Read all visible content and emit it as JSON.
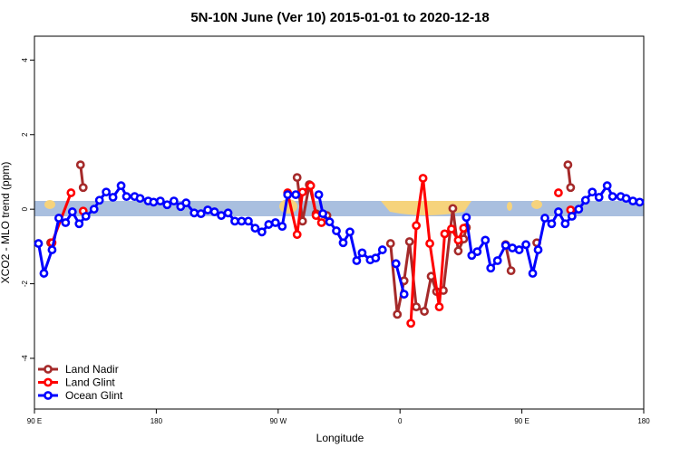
{
  "chart_data": {
    "type": "line",
    "title": "5N-10N June (Ver 10)   2015-01-01 to 2020-12-18",
    "x_label": "Longitude",
    "y_label": "XCO2 - MLO trend (ppm)",
    "xlim": [
      90,
      540
    ],
    "ylim": [
      -5.36,
      4.64
    ],
    "xticks": [
      {
        "value": 90,
        "label": "90 E"
      },
      180,
      {
        "value": 270,
        "label": "90 W"
      },
      {
        "value": 360,
        "label": "0"
      },
      {
        "value": 450,
        "label": "90 E"
      },
      {
        "value": 540,
        "label": "180"
      }
    ],
    "yticks": [
      -4,
      -2,
      0,
      2,
      4
    ],
    "grid": false,
    "legend": "bottom-left",
    "series": [
      {
        "name": "Land Nadir",
        "color": "#a52a2a",
        "x": [
          102,
          null,
          124,
          126,
          null,
          284,
          288,
          293,
          298,
          306,
          null,
          353,
          358,
          363,
          367,
          372,
          378,
          383,
          387,
          392,
          399,
          403,
          407,
          409,
          null,
          438,
          442,
          null,
          461,
          null,
          484,
          486
        ],
        "values": [
          -0.9,
          null,
          1.19,
          0.58,
          null,
          0.85,
          -0.32,
          0.66,
          -0.12,
          -0.17,
          null,
          -0.92,
          -2.82,
          -1.92,
          -0.87,
          -2.62,
          -2.74,
          -1.8,
          -2.21,
          -2.18,
          0.02,
          -1.12,
          -0.8,
          -0.49,
          null,
          -0.95,
          -1.65,
          null,
          -0.9,
          null,
          1.19,
          0.58
        ]
      },
      {
        "name": "Land Glint",
        "color": "#ff0000",
        "x": [
          103,
          117,
          null,
          126,
          null,
          277,
          284,
          288,
          294,
          298,
          302,
          null,
          368,
          372,
          377,
          382,
          389,
          393,
          398,
          403,
          407,
          null,
          477,
          null,
          486
        ],
        "values": [
          -0.9,
          0.44,
          null,
          -0.05,
          null,
          0.44,
          -0.68,
          0.46,
          0.63,
          -0.17,
          -0.36,
          null,
          -3.06,
          -0.44,
          0.83,
          -0.92,
          -2.62,
          -0.66,
          -0.53,
          -0.83,
          -0.51,
          null,
          0.44,
          null,
          -0.02
        ]
      },
      {
        "name": "Ocean Glint",
        "color": "#0000ff",
        "x": [
          93,
          97,
          103,
          108,
          113,
          118,
          123,
          128,
          134,
          138,
          143,
          148,
          154,
          158,
          164,
          168,
          174,
          178,
          183,
          188,
          193,
          198,
          202,
          208,
          213,
          218,
          223,
          228,
          233,
          238,
          243,
          248,
          253,
          258,
          263,
          268,
          273,
          277,
          283,
          null,
          300,
          303,
          308,
          313,
          318,
          323,
          328,
          332,
          338,
          342,
          347,
          null,
          357,
          363,
          null,
          409,
          413,
          417,
          423,
          427,
          432,
          438,
          443,
          448,
          453,
          458,
          462,
          467,
          472,
          477,
          482,
          487,
          492,
          497,
          502,
          507,
          513,
          517,
          523,
          527,
          532,
          537
        ],
        "values": [
          -0.92,
          -1.72,
          -1.09,
          -0.24,
          -0.36,
          -0.07,
          -0.39,
          -0.19,
          0,
          0.24,
          0.46,
          0.32,
          0.63,
          0.34,
          0.34,
          0.29,
          0.22,
          0.19,
          0.22,
          0.12,
          0.22,
          0.07,
          0.17,
          -0.1,
          -0.12,
          -0.02,
          -0.07,
          -0.17,
          -0.1,
          -0.32,
          -0.32,
          -0.32,
          -0.51,
          -0.61,
          -0.41,
          -0.36,
          -0.46,
          0.39,
          0.39,
          null,
          0.39,
          -0.12,
          -0.34,
          -0.58,
          -0.9,
          -0.61,
          -1.38,
          -1.17,
          -1.36,
          -1.31,
          -1.09,
          null,
          -1.46,
          -2.28,
          null,
          -0.22,
          -1.24,
          -1.14,
          -0.83,
          -1.58,
          -1.38,
          -0.97,
          -1.04,
          -1.09,
          -0.95,
          -1.72,
          -1.09,
          -0.24,
          -0.39,
          -0.07,
          -0.39,
          -0.19,
          0,
          0.24,
          0.46,
          0.32,
          0.63,
          0.34,
          0.34,
          0.29,
          0.22,
          0.19
        ]
      }
    ]
  }
}
